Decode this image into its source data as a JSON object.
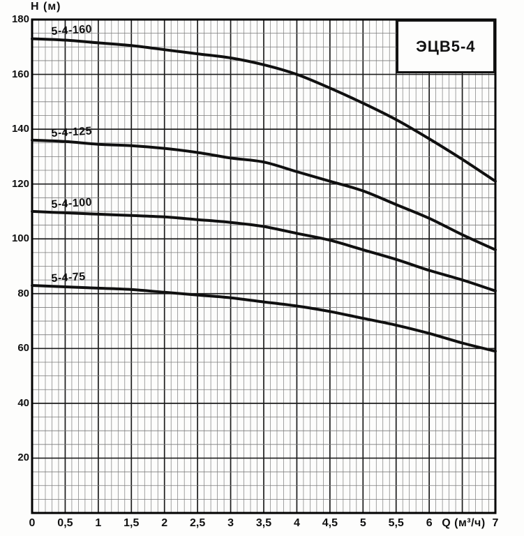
{
  "title_box": {
    "label": "ЭЦВ5-4"
  },
  "axes": {
    "y_axis_title": "H (м)",
    "x_axis_title": "Q (м³/ч)",
    "y_tick_values": [
      180,
      160,
      140,
      120,
      100,
      80,
      60,
      40,
      20
    ],
    "y_tick_labels": [
      "180",
      "160",
      "140",
      "120",
      "100",
      "80",
      "60",
      "40",
      "20"
    ],
    "x_tick_values": [
      0,
      0.5,
      1,
      1.5,
      2,
      2.5,
      3,
      3.5,
      4,
      4.5,
      5,
      5.5,
      6,
      7
    ],
    "x_tick_labels": [
      "0",
      "0,5",
      "1",
      "1,5",
      "2",
      "2,5",
      "3",
      "3,5",
      "4",
      "4,5",
      "5",
      "5,5",
      "6",
      "7"
    ],
    "x_axis_title_position": 6.52
  },
  "chart_data": {
    "type": "line",
    "title": "ЭЦВ5-4",
    "xlabel": "Q (м³/ч)",
    "ylabel": "H (м)",
    "xlim": [
      0,
      7
    ],
    "ylim": [
      0,
      180
    ],
    "x_major_step": 0.5,
    "x_minor_step": 0.1,
    "y_major_step": 20,
    "y_minor_step": 5,
    "grid": "major+minor",
    "legend": "inline-curve-labels",
    "x": [
      0,
      0.5,
      1,
      1.5,
      2,
      2.5,
      3,
      3.5,
      4,
      4.5,
      5,
      5.5,
      6,
      6.5,
      7
    ],
    "series": [
      {
        "name": "5-4-160",
        "values": [
          173,
          172.5,
          171.5,
          170.5,
          169,
          167.5,
          166,
          163.5,
          160,
          155,
          149.5,
          143.5,
          136.5,
          129,
          121
        ]
      },
      {
        "name": "5-4-125",
        "values": [
          136,
          135.5,
          134.5,
          134,
          133,
          131.5,
          129.5,
          128,
          124.5,
          121,
          117.5,
          112.5,
          107.5,
          101.5,
          96
        ]
      },
      {
        "name": "5-4-100",
        "values": [
          110,
          109.5,
          109,
          108.5,
          108,
          107,
          106,
          104.5,
          102,
          99.5,
          96,
          92.5,
          88.5,
          85,
          81
        ]
      },
      {
        "name": "5-4-75",
        "values": [
          83,
          82.5,
          82,
          81.5,
          80.5,
          79.5,
          78.5,
          77,
          75.5,
          73.5,
          71,
          68.5,
          65.5,
          62,
          59
        ]
      }
    ]
  },
  "colors": {
    "curve": "#101010",
    "grid_minor": "#7a7a7a",
    "grid_major": "#1c1c1c",
    "plot_border": "#000000",
    "text": "#111111",
    "title_box_bg": "#fdfdfc",
    "title_box_border": "#111111"
  }
}
